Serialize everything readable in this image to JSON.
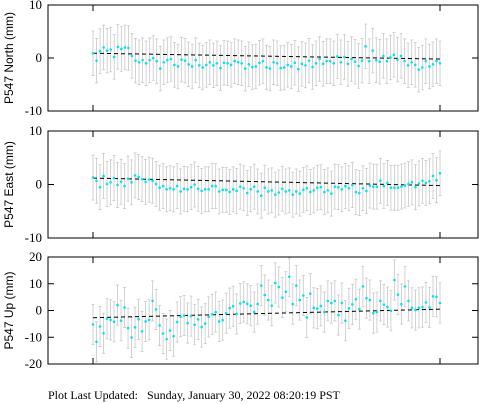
{
  "footer_text": "Plot Last Updated:   Sunday, January 30, 2022 08:20:19 PST",
  "colors": {
    "points": "#00e5ee",
    "error_bars": "#c8c8c8",
    "trend": "#000000",
    "frame": "#000000"
  },
  "chart_data": [
    {
      "type": "scatter",
      "ylabel": "P547 North (mm)",
      "ylim": [
        -10,
        10
      ],
      "yticks": [
        10,
        0,
        -10
      ],
      "error_mm": 4.2,
      "trend": [
        0.9,
        -0.2
      ],
      "values": [
        0.9,
        -0.5,
        1.3,
        2.0,
        1.4,
        1.6,
        0.2,
        2.1,
        1.7,
        2.0,
        1.9,
        0.4,
        -0.5,
        -0.8,
        -0.4,
        -1.0,
        -0.4,
        0.0,
        -0.6,
        -2.0,
        -0.8,
        -0.4,
        -0.2,
        -1.3,
        -1.6,
        -0.3,
        -0.5,
        -1.2,
        -1.6,
        -0.4,
        -1.4,
        -1.8,
        -1.3,
        -0.8,
        -1.4,
        -1.0,
        -1.9,
        -0.9,
        -1.0,
        -1.3,
        -0.6,
        -0.8,
        -1.0,
        -2.0,
        -1.2,
        -1.7,
        -1.6,
        -0.9,
        -0.6,
        -1.8,
        -2.0,
        -0.8,
        -1.0,
        -1.9,
        -1.8,
        -1.3,
        -1.6,
        -0.9,
        -2.1,
        -1.1,
        -1.4,
        -0.5,
        -1.7,
        -1.0,
        -0.2,
        -1.1,
        -0.6,
        -0.6,
        -1.0,
        0.3,
        -0.8,
        0.2,
        -1.1,
        -0.2,
        -0.7,
        -1.5,
        -0.5,
        2.2,
        -0.6,
        1.4,
        -0.4,
        -0.7,
        0.4,
        -0.6,
        0.1,
        0.6,
        -0.3,
        0.4,
        -0.6,
        -1.4,
        -0.8,
        -1.3,
        -2.2,
        -1.8,
        -0.6,
        -1.6,
        -1.2,
        -0.6,
        -1.0
      ]
    },
    {
      "type": "scatter",
      "ylabel": "P547 East (mm)",
      "ylim": [
        -10,
        10
      ],
      "yticks": [
        10,
        0,
        -10
      ],
      "error_mm": 4.2,
      "trend": [
        1.2,
        -0.2
      ],
      "values": [
        1.3,
        0.7,
        -0.5,
        1.6,
        0.1,
        0.4,
        1.2,
        -0.1,
        0.5,
        -0.3,
        1.1,
        0.4,
        1.7,
        1.4,
        1.0,
        0.5,
        0.9,
        0.7,
        0.1,
        -0.6,
        -0.3,
        -0.9,
        -0.7,
        -0.9,
        -0.3,
        -1.3,
        -0.8,
        -0.9,
        -0.5,
        0.0,
        -0.8,
        -1.2,
        -0.9,
        -0.9,
        -0.3,
        -0.3,
        -1.3,
        -1.0,
        -1.0,
        -1.4,
        -0.9,
        -1.2,
        -0.4,
        -0.7,
        -1.6,
        -0.9,
        -0.4,
        -1.3,
        -2.1,
        -0.6,
        -1.3,
        -1.1,
        -1.9,
        -1.5,
        -0.8,
        -1.3,
        -1.1,
        -1.9,
        -1.3,
        -1.7,
        -1.0,
        -0.7,
        -1.4,
        -1.1,
        -0.6,
        -0.5,
        -1.4,
        -1.1,
        -1.7,
        -0.4,
        -0.5,
        -0.9,
        -0.3,
        -0.7,
        -0.1,
        -1.4,
        -1.6,
        -0.7,
        -1.2,
        -0.2,
        -0.4,
        -0.4,
        0.7,
        -0.3,
        0.3,
        -0.6,
        -0.6,
        -0.6,
        -0.4,
        -0.2,
        0.1,
        0.4,
        -0.5,
        0.2,
        0.7,
        0.3,
        0.6,
        1.6,
        0.8,
        2.1
      ]
    },
    {
      "type": "scatter",
      "ylabel": "P547 Up (mm)",
      "ylim": [
        -20,
        20
      ],
      "yticks": [
        20,
        10,
        0,
        -10,
        -20
      ],
      "error_mm": 7.5,
      "trend": [
        -2.7,
        0.5
      ],
      "values": [
        -5.2,
        -11.7,
        -6.0,
        -8.5,
        -3.1,
        -3.5,
        -4.2,
        2.0,
        -3.8,
        1.1,
        -6.6,
        -10.1,
        -6.3,
        -3.3,
        -7.8,
        -4.1,
        -3.5,
        3.6,
        0.4,
        -5.6,
        -8.6,
        -10.7,
        -7.5,
        -9.6,
        -4.3,
        -2.3,
        -1.9,
        -4.7,
        -2.1,
        -5.3,
        -3.3,
        -6.2,
        -4.9,
        -2.4,
        -1.4,
        -0.6,
        -4.1,
        -3.6,
        -1.0,
        0.9,
        1.6,
        -1.3,
        2.6,
        3.2,
        2.5,
        1.8,
        -0.6,
        2.4,
        9.3,
        5.8,
        3.9,
        1.8,
        10.3,
        8.8,
        4.8,
        7.0,
        12.6,
        2.4,
        9.3,
        3.9,
        5.6,
        -2.6,
        6.3,
        1.0,
        0.7,
        1.7,
        -0.6,
        3.6,
        2.8,
        3.6,
        -1.7,
        2.8,
        -3.8,
        0.8,
        2.3,
        4.2,
        0.5,
        9.0,
        4.6,
        3.9,
        -1.0,
        -0.6,
        3.6,
        2.2,
        1.3,
        -0.1,
        11.4,
        5.9,
        2.4,
        9.0,
        3.6,
        1.0,
        0.2,
        1.0,
        1.3,
        3.0,
        1.2,
        5.3,
        5.1,
        2.8
      ]
    }
  ]
}
